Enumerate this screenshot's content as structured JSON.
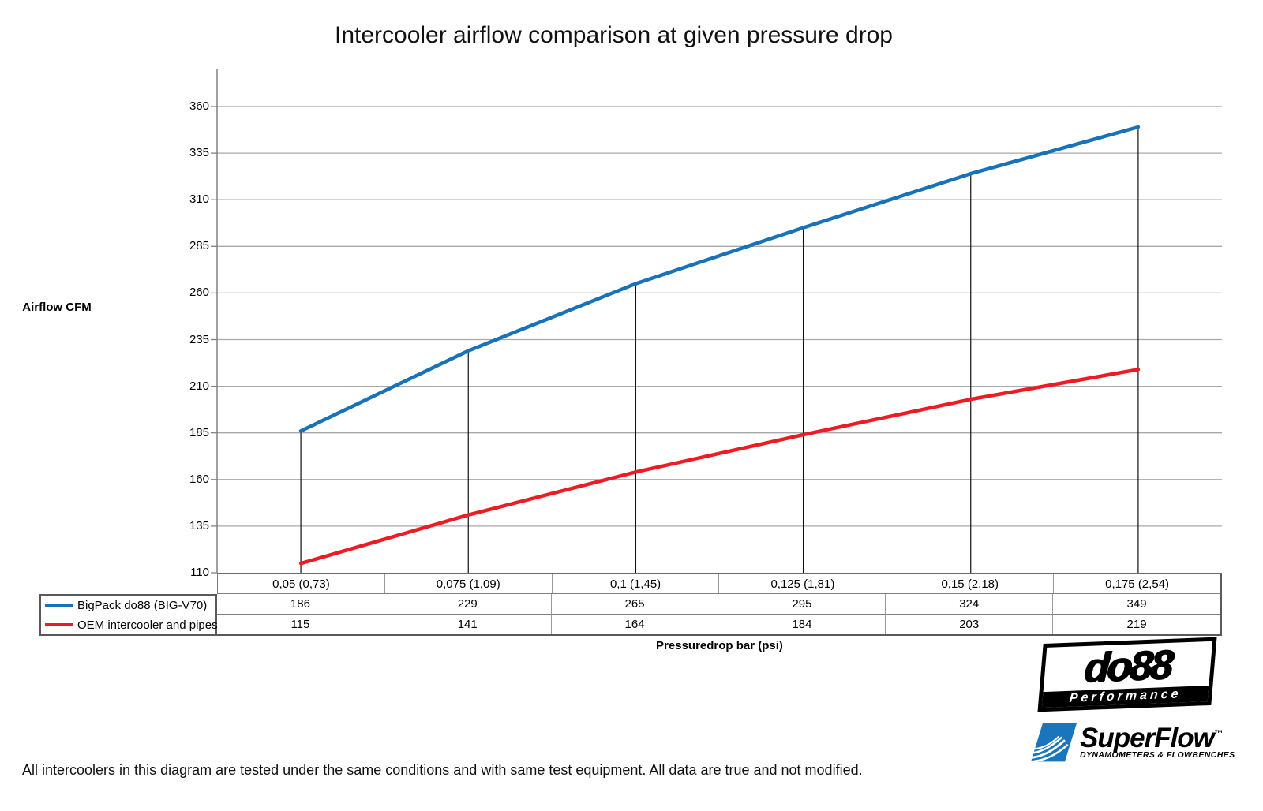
{
  "chart_data": {
    "type": "line",
    "title": "Intercooler airflow comparison at given pressure drop",
    "ylabel": "Airflow CFM",
    "xlabel": "Pressuredrop bar (psi)",
    "categories": [
      "0,05 (0,73)",
      "0,075 (1,09)",
      "0,1 (1,45)",
      "0,125 (1,81)",
      "0,15 (2,18)",
      "0,175 (2,54)"
    ],
    "yticks": [
      360,
      335,
      310,
      285,
      260,
      235,
      210,
      185,
      160,
      135,
      110
    ],
    "ylim": [
      110,
      385
    ],
    "grid": "horizontal-only",
    "legend_position": "data-table-left",
    "droplines_to_first_series": true,
    "series": [
      {
        "name": "BigPack do88 (BIG-V70)",
        "color": "#1772B9",
        "values": [
          186,
          229,
          265,
          295,
          324,
          349
        ]
      },
      {
        "name": "OEM intercooler and pipes",
        "color": "#ED1C24",
        "values": [
          115,
          141,
          164,
          184,
          203,
          219
        ]
      }
    ]
  },
  "colors": {
    "gridline": "#A8A8A8",
    "axis": "#808080",
    "dropline": "#111111",
    "table_border": "#5A5A5A"
  },
  "footer": {
    "disclaimer": "All intercoolers in this diagram are tested under the same conditions and with same test equipment. All data are true and not modified."
  },
  "logos": {
    "do88": {
      "text": "do88",
      "tagline": "Performance",
      "color": "#000000"
    },
    "superflow": {
      "text": "SuperFlow",
      "trademark": "™",
      "tagline": "DYNAMOMETERS & FLOWBENCHES",
      "emblem_color": "#1B75BC",
      "text_color": "#1D4868"
    }
  }
}
